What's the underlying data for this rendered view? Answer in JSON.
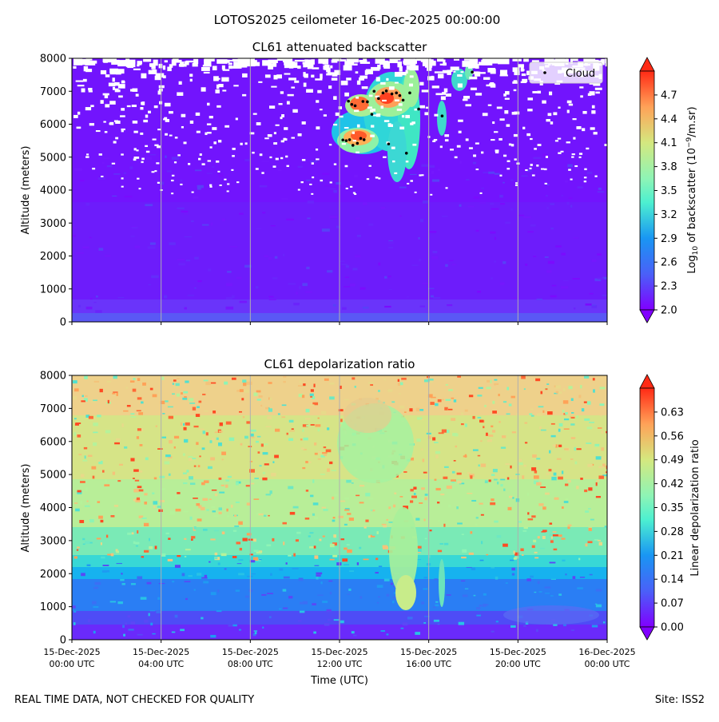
{
  "suptitle": "LOTOS2025 ceilometer 16-Dec-2025 00:00:00",
  "footer": {
    "left": "REAL TIME DATA, NOT CHECKED FOR QUALITY",
    "right": "Site: ISS2"
  },
  "chart_data": [
    {
      "type": "heatmap",
      "title": "CL61 attenuated backscatter",
      "ylabel": "Altitude (meters)",
      "xlabel": "",
      "x_ticks": [
        "15-Dec-2025\n00:00 UTC",
        "15-Dec-2025\n04:00 UTC",
        "15-Dec-2025\n08:00 UTC",
        "15-Dec-2025\n12:00 UTC",
        "15-Dec-2025\n16:00 UTC",
        "15-Dec-2025\n20:00 UTC",
        "16-Dec-2025\n00:00 UTC"
      ],
      "x_tick_labels_visible": false,
      "xlim_hours": [
        0,
        24
      ],
      "ylim": [
        0,
        8000
      ],
      "y_ticks": [
        0,
        1000,
        2000,
        3000,
        4000,
        5000,
        6000,
        7000,
        8000
      ],
      "grid": "vertical",
      "colormap": "rainbow",
      "colorbar": {
        "label": "Log10 of backscatter (10^-9/m.sr)",
        "range": [
          2.0,
          5.0
        ],
        "ticks": [
          "2.0",
          "2.3",
          "2.6",
          "2.9",
          "3.2",
          "3.5",
          "3.8",
          "4.1",
          "4.4",
          "4.7"
        ],
        "extend": "both"
      },
      "legend": {
        "placement": "top-right",
        "entries": [
          {
            "name": "Cloud",
            "marker": "point",
            "color": "#000000"
          }
        ]
      },
      "cloud_points": [
        {
          "t": 12.15,
          "alt": 5520
        },
        {
          "t": 12.3,
          "alt": 5500
        },
        {
          "t": 12.45,
          "alt": 5530
        },
        {
          "t": 12.6,
          "alt": 5360
        },
        {
          "t": 12.8,
          "alt": 5420
        },
        {
          "t": 12.95,
          "alt": 5570
        },
        {
          "t": 13.1,
          "alt": 5530
        },
        {
          "t": 12.4,
          "alt": 6700
        },
        {
          "t": 12.55,
          "alt": 6600
        },
        {
          "t": 12.7,
          "alt": 6560
        },
        {
          "t": 13.05,
          "alt": 6690
        },
        {
          "t": 13.25,
          "alt": 6680
        },
        {
          "t": 13.45,
          "alt": 6300
        },
        {
          "t": 13.55,
          "alt": 7000
        },
        {
          "t": 13.75,
          "alt": 6780
        },
        {
          "t": 13.95,
          "alt": 6950
        },
        {
          "t": 14.1,
          "alt": 7010
        },
        {
          "t": 14.2,
          "alt": 5400
        },
        {
          "t": 14.35,
          "alt": 6920
        },
        {
          "t": 14.55,
          "alt": 6950
        },
        {
          "t": 14.7,
          "alt": 6870
        },
        {
          "t": 14.85,
          "alt": 6730
        },
        {
          "t": 15.0,
          "alt": 5120
        },
        {
          "t": 15.15,
          "alt": 6950
        },
        {
          "t": 15.55,
          "alt": 6460
        },
        {
          "t": 16.6,
          "alt": 6250
        },
        {
          "t": 17.95,
          "alt": 7580
        }
      ]
    },
    {
      "type": "heatmap",
      "title": "CL61 depolarization ratio",
      "ylabel": "Altitude (meters)",
      "xlabel": "Time (UTC)",
      "x_ticks": [
        "15-Dec-2025\n00:00 UTC",
        "15-Dec-2025\n04:00 UTC",
        "15-Dec-2025\n08:00 UTC",
        "15-Dec-2025\n12:00 UTC",
        "15-Dec-2025\n16:00 UTC",
        "15-Dec-2025\n20:00 UTC",
        "16-Dec-2025\n00:00 UTC"
      ],
      "xlim_hours": [
        0,
        24
      ],
      "ylim": [
        0,
        8000
      ],
      "y_ticks": [
        0,
        1000,
        2000,
        3000,
        4000,
        5000,
        6000,
        7000,
        8000
      ],
      "grid": "vertical",
      "colormap": "rainbow",
      "colorbar": {
        "label": "Linear depolarization ratio",
        "range": [
          0.0,
          0.7
        ],
        "ticks": [
          "0.00",
          "0.07",
          "0.14",
          "0.21",
          "0.28",
          "0.35",
          "0.42",
          "0.49",
          "0.56",
          "0.63"
        ],
        "extend": "both"
      }
    }
  ]
}
